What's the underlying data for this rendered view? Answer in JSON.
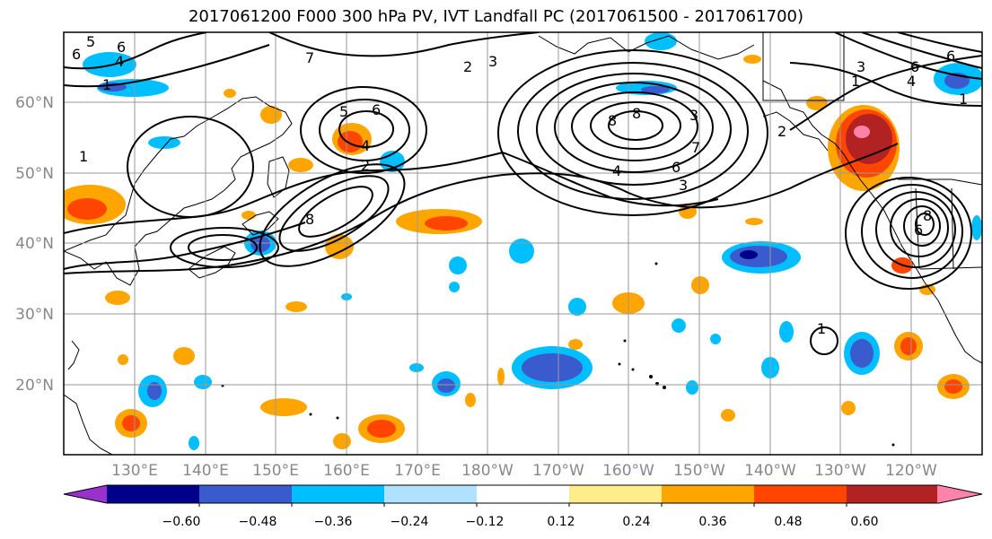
{
  "title": "2017061200 F000 300 hPa PV, IVT Landfall PC (2017061500 - 2017061700)",
  "lat_labels": [
    "60°N",
    "50°N",
    "40°N",
    "30°N",
    "20°N"
  ],
  "lon_labels": [
    "130°E",
    "140°E",
    "150°E",
    "160°E",
    "170°E",
    "180°W",
    "170°W",
    "160°W",
    "150°W",
    "140°W",
    "130°W",
    "120°W"
  ],
  "colorbar": {
    "ticks": [
      "−0.60",
      "−0.48",
      "−0.36",
      "−0.24",
      "−0.12",
      "0.12",
      "0.24",
      "0.36",
      "0.48",
      "0.60"
    ],
    "colors": [
      "#9932CC",
      "#00008B",
      "#3A5BCD",
      "#00BFFF",
      "#B0E2FF",
      "#FFFFFF",
      "#FFEC8B",
      "#FFA500",
      "#FF4500",
      "#B22222",
      "#FF82AB"
    ]
  },
  "contour_labels": [
    "5",
    "6",
    "4",
    "1",
    "7",
    "2",
    "3",
    "8",
    "5",
    "4",
    "2",
    "6",
    "8",
    "7",
    "6",
    "4",
    "3",
    "2",
    "1",
    "6",
    "4",
    "3",
    "1",
    "6",
    "8",
    "3",
    "1",
    "8",
    "6",
    "1",
    "6"
  ]
}
